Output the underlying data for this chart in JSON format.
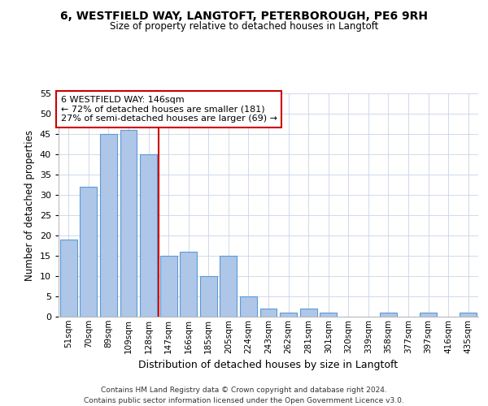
{
  "title1": "6, WESTFIELD WAY, LANGTOFT, PETERBOROUGH, PE6 9RH",
  "title2": "Size of property relative to detached houses in Langtoft",
  "xlabel": "Distribution of detached houses by size in Langtoft",
  "ylabel": "Number of detached properties",
  "categories": [
    "51sqm",
    "70sqm",
    "89sqm",
    "109sqm",
    "128sqm",
    "147sqm",
    "166sqm",
    "185sqm",
    "205sqm",
    "224sqm",
    "243sqm",
    "262sqm",
    "281sqm",
    "301sqm",
    "320sqm",
    "339sqm",
    "358sqm",
    "377sqm",
    "397sqm",
    "416sqm",
    "435sqm"
  ],
  "values": [
    19,
    32,
    45,
    46,
    40,
    15,
    16,
    10,
    15,
    5,
    2,
    1,
    2,
    1,
    0,
    0,
    1,
    0,
    1,
    0,
    1
  ],
  "bar_color": "#aec6e8",
  "bar_edge_color": "#5b9bd5",
  "vline_color": "#cc0000",
  "vline_index": 5,
  "annotation_text": "6 WESTFIELD WAY: 146sqm\n← 72% of detached houses are smaller (181)\n27% of semi-detached houses are larger (69) →",
  "annotation_box_color": "#ffffff",
  "annotation_box_edge": "#cc0000",
  "ylim": [
    0,
    55
  ],
  "yticks": [
    0,
    5,
    10,
    15,
    20,
    25,
    30,
    35,
    40,
    45,
    50,
    55
  ],
  "footer": "Contains HM Land Registry data © Crown copyright and database right 2024.\nContains public sector information licensed under the Open Government Licence v3.0.",
  "background_color": "#ffffff",
  "grid_color": "#c8d4e8"
}
